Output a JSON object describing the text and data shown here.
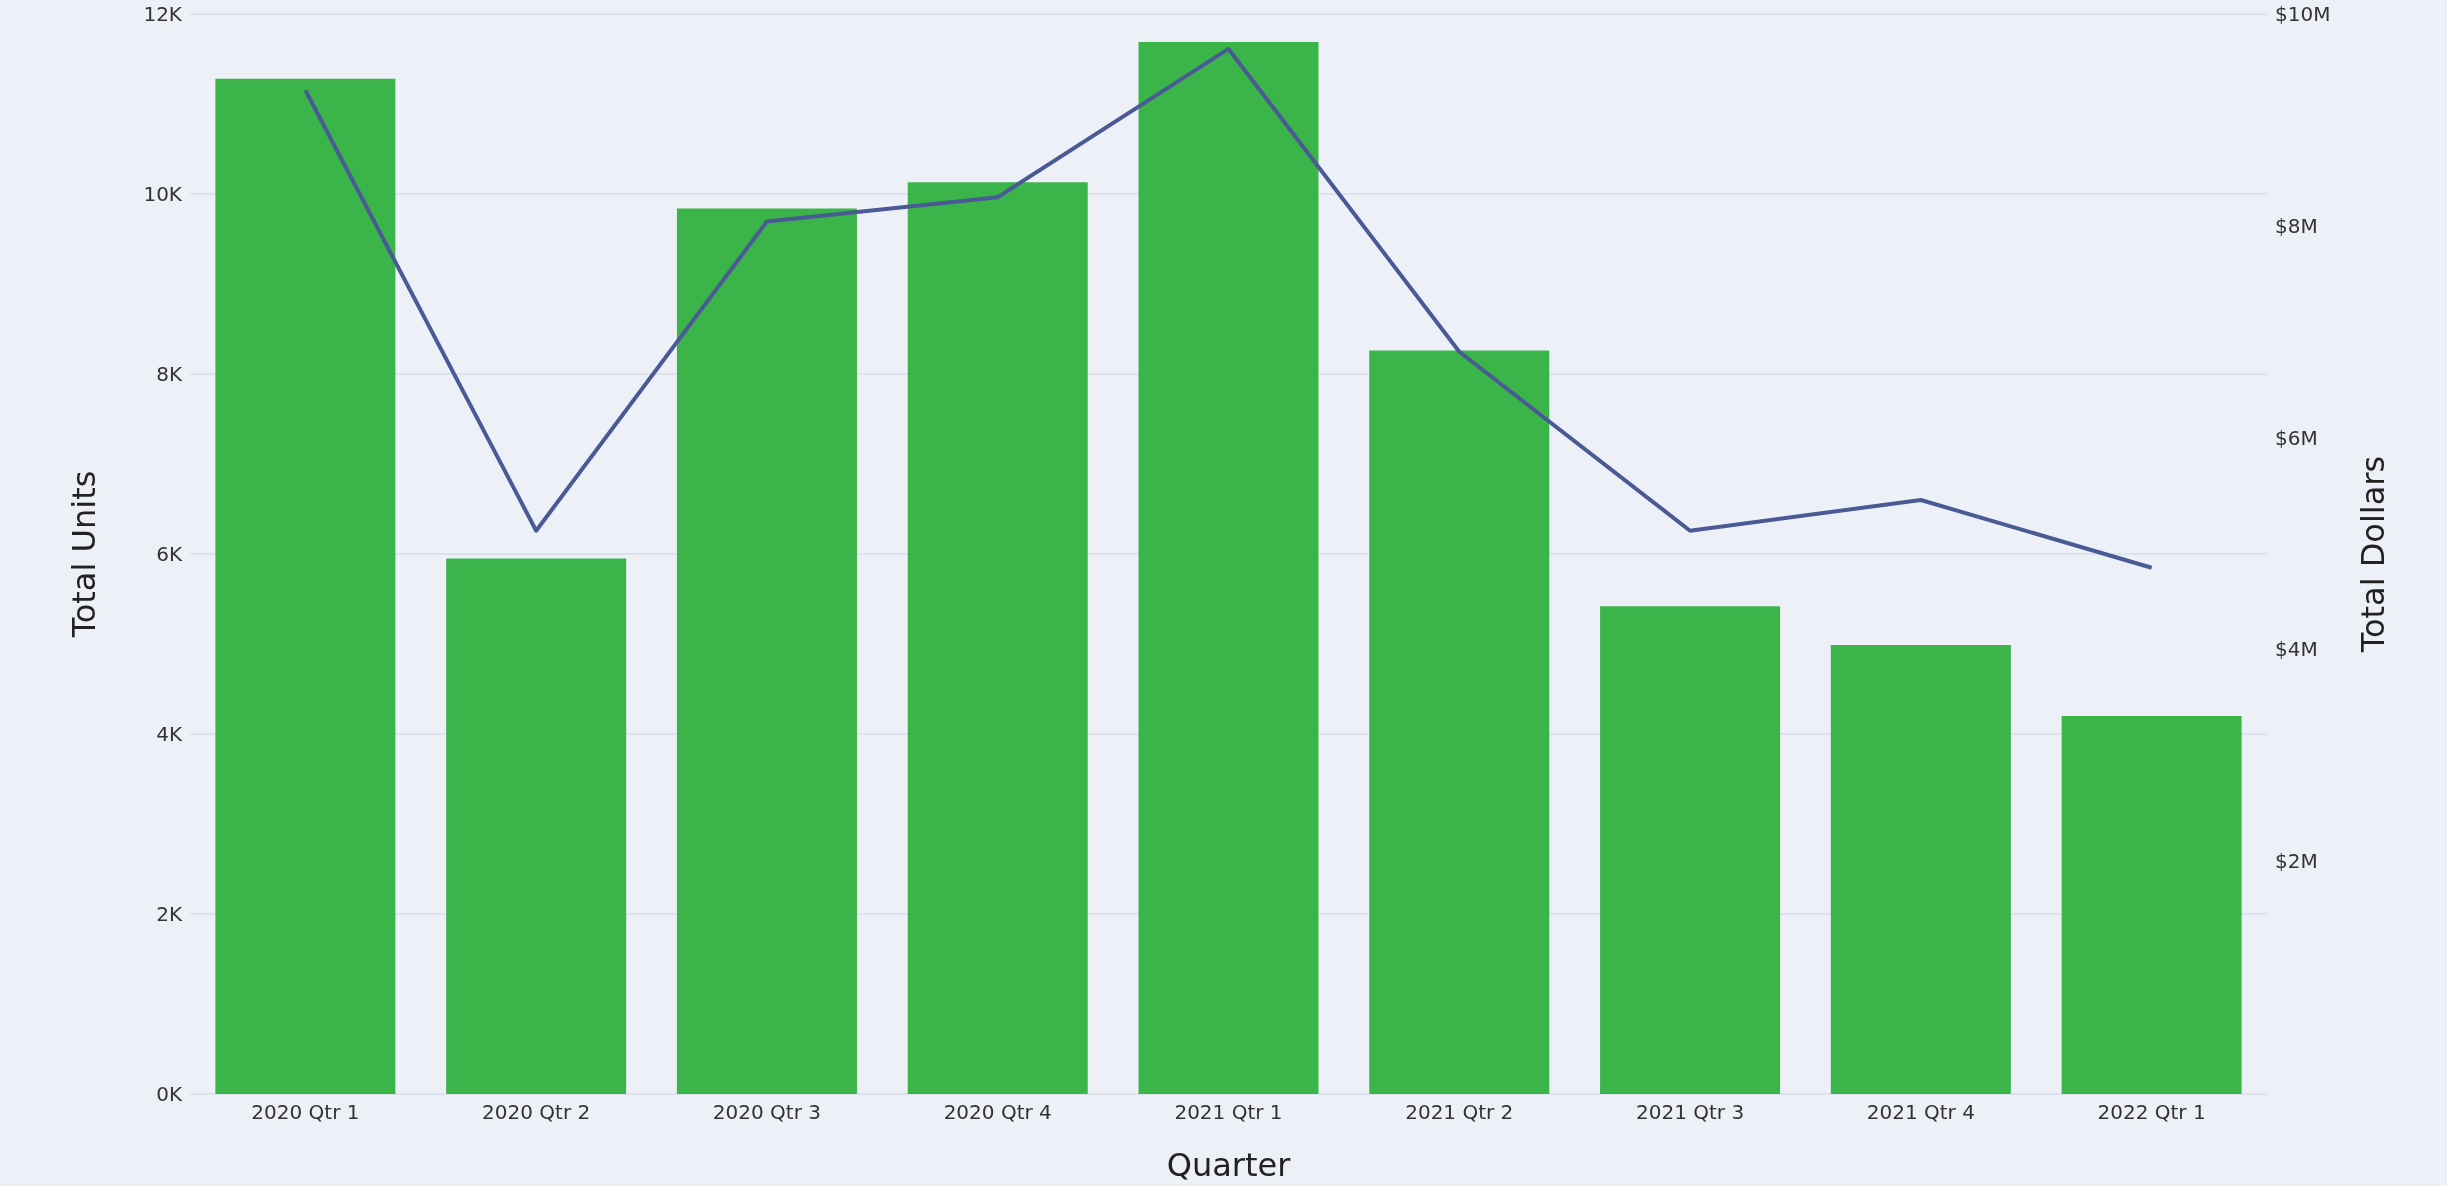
{
  "chart_data": {
    "type": "bar",
    "xlabel": "Quarter",
    "ylabel": "Total Units",
    "y2label": "Total Dollars",
    "categories": [
      "2020 Qtr 1",
      "2020 Qtr 2",
      "2020 Qtr 3",
      "2020 Qtr 4",
      "2021 Qtr 1",
      "2021 Qtr 2",
      "2021 Qtr 3",
      "2021 Qtr 4",
      "2022 Qtr 1"
    ],
    "series": [
      {
        "color": "#3bb54a",
        "values": [
          11280,
          5950,
          9840,
          10130,
          11690,
          8260,
          5420,
          4990,
          4200
        ]
      },
      {
        "type": "line",
        "axis": "y2",
        "color": "#4a5a95",
        "values": [
          9280000,
          5120000,
          8040000,
          8270000,
          9670000,
          6810000,
          5120000,
          5410000,
          4770000
        ]
      }
    ],
    "ylim": [
      0,
      12000
    ],
    "yticks": [
      {
        "value": 0,
        "label": "0K"
      },
      {
        "value": 2000,
        "label": "2K"
      },
      {
        "value": 4000,
        "label": "4K"
      },
      {
        "value": 6000,
        "label": "6K"
      },
      {
        "value": 8000,
        "label": "8K"
      },
      {
        "value": 10000,
        "label": "10K"
      },
      {
        "value": 12000,
        "label": "12K"
      }
    ],
    "y2lim": [
      -200000,
      10000000
    ],
    "y2ticks": [
      {
        "value": 2000000,
        "label": "$2M"
      },
      {
        "value": 4000000,
        "label": "$4M"
      },
      {
        "value": 6000000,
        "label": "$6M"
      },
      {
        "value": 8000000,
        "label": "$8M"
      },
      {
        "value": 10000000,
        "label": "$10M"
      }
    ],
    "grid": "y",
    "marker": "none"
  }
}
